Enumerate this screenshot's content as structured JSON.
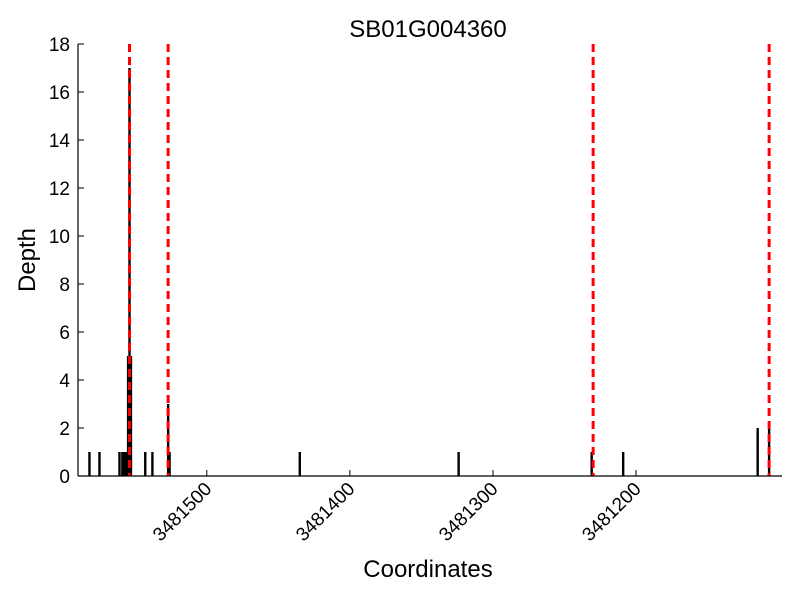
{
  "chart_data": {
    "type": "bar",
    "title": "SB01G004360",
    "xlabel": "Coordinates",
    "ylabel": "Depth",
    "x_axis_reversed": true,
    "xlim": [
      3481590,
      3481098
    ],
    "ylim": [
      0,
      18
    ],
    "grid": false,
    "legend": "none",
    "x_ticks": [
      3481500,
      3481400,
      3481300,
      3481200
    ],
    "y_ticks": [
      0,
      2,
      4,
      6,
      8,
      10,
      12,
      14,
      16,
      18
    ],
    "bar_color": "#000000",
    "bars": [
      {
        "x": 3481582,
        "depth": 1
      },
      {
        "x": 3481575,
        "depth": 1
      },
      {
        "x": 3481561,
        "depth": 1
      },
      {
        "x": 3481559,
        "depth": 1
      },
      {
        "x": 3481558,
        "depth": 1
      },
      {
        "x": 3481557,
        "depth": 1
      },
      {
        "x": 3481556,
        "depth": 1
      },
      {
        "x": 3481555,
        "depth": 5
      },
      {
        "x": 3481554,
        "depth": 17
      },
      {
        "x": 3481553,
        "depth": 5
      },
      {
        "x": 3481543,
        "depth": 1
      },
      {
        "x": 3481538,
        "depth": 1
      },
      {
        "x": 3481527,
        "depth": 3
      },
      {
        "x": 3481526,
        "depth": 1
      },
      {
        "x": 3481435,
        "depth": 1
      },
      {
        "x": 3481324,
        "depth": 1
      },
      {
        "x": 3481231,
        "depth": 1
      },
      {
        "x": 3481209,
        "depth": 1
      },
      {
        "x": 3481115,
        "depth": 2
      },
      {
        "x": 3481107,
        "depth": 2
      }
    ],
    "vlines": {
      "color": "#ff0000",
      "style": "dashed",
      "x": [
        3481554,
        3481527,
        3481230,
        3481107
      ]
    }
  }
}
